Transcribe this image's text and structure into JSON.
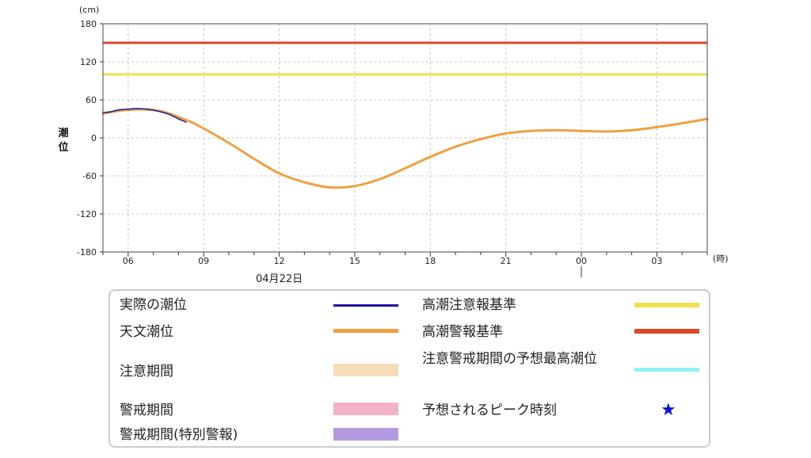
{
  "chart_data": {
    "type": "line",
    "unit_label": "(cm)",
    "ylabel": "潮位",
    "x_unit_label": "(時)",
    "date_label": "04月22日",
    "ylim": [
      -180,
      180
    ],
    "yticks": [
      -180,
      -120,
      -60,
      0,
      60,
      120,
      180
    ],
    "xlim_hours": [
      5,
      29
    ],
    "xticks": [
      {
        "h": 6,
        "label": "06"
      },
      {
        "h": 9,
        "label": "09"
      },
      {
        "h": 12,
        "label": "12"
      },
      {
        "h": 15,
        "label": "15"
      },
      {
        "h": 18,
        "label": "18"
      },
      {
        "h": 21,
        "label": "21"
      },
      {
        "h": 24,
        "label": "00"
      },
      {
        "h": 27,
        "label": "03"
      }
    ],
    "grid": true,
    "thresholds": [
      {
        "name": "高潮注意報基準",
        "value": 100,
        "color": "#f0e050"
      },
      {
        "name": "高潮警報基準",
        "value": 150,
        "color": "#d94a2a"
      }
    ],
    "series": [
      {
        "name": "天文潮位",
        "color": "#f0a040",
        "x": [
          5,
          5.5,
          6,
          6.5,
          7,
          7.5,
          8,
          8.5,
          9,
          10,
          11,
          12,
          13,
          14,
          15,
          16,
          17,
          18,
          19,
          20,
          21,
          22,
          23,
          24,
          25,
          26,
          27,
          28,
          29
        ],
        "y": [
          38,
          42,
          44,
          45,
          44,
          40,
          33,
          25,
          15,
          -8,
          -33,
          -56,
          -70,
          -78,
          -76,
          -65,
          -48,
          -30,
          -14,
          -2,
          7,
          11,
          12,
          11,
          10,
          12,
          17,
          23,
          30
        ]
      },
      {
        "name": "実際の潮位",
        "color": "#2020a0",
        "x": [
          5,
          5.3,
          5.6,
          5.9,
          6.2,
          6.5,
          6.8,
          7.1,
          7.4,
          7.7,
          8,
          8.3
        ],
        "y": [
          40,
          41,
          44,
          45,
          46,
          46,
          45,
          43,
          40,
          36,
          30,
          25
        ]
      }
    ]
  },
  "legend": {
    "items": [
      {
        "label": "実際の潮位",
        "color": "#2010a0",
        "kind": "line"
      },
      {
        "label": "高潮注意報基準",
        "color": "#f0e050",
        "kind": "line"
      },
      {
        "label": "天文潮位",
        "color": "#f0a040",
        "kind": "line"
      },
      {
        "label": "高潮警報基準",
        "color": "#d94a2a",
        "kind": "line"
      },
      {
        "label": "注意期間",
        "color": "#f6dcb8",
        "kind": "box"
      },
      {
        "label": "注意警戒期間の予想最高潮位",
        "color": "#8ff2f2",
        "kind": "line"
      },
      {
        "label": "警戒期間",
        "color": "#f2b3c8",
        "kind": "box"
      },
      {
        "label": "予想されるピーク時刻",
        "color": "#1010d0",
        "kind": "star",
        "icon": "star-icon",
        "glyph": "★"
      },
      {
        "label": "警戒期間(特別警報)",
        "color": "#b39ae0",
        "kind": "box"
      }
    ]
  }
}
